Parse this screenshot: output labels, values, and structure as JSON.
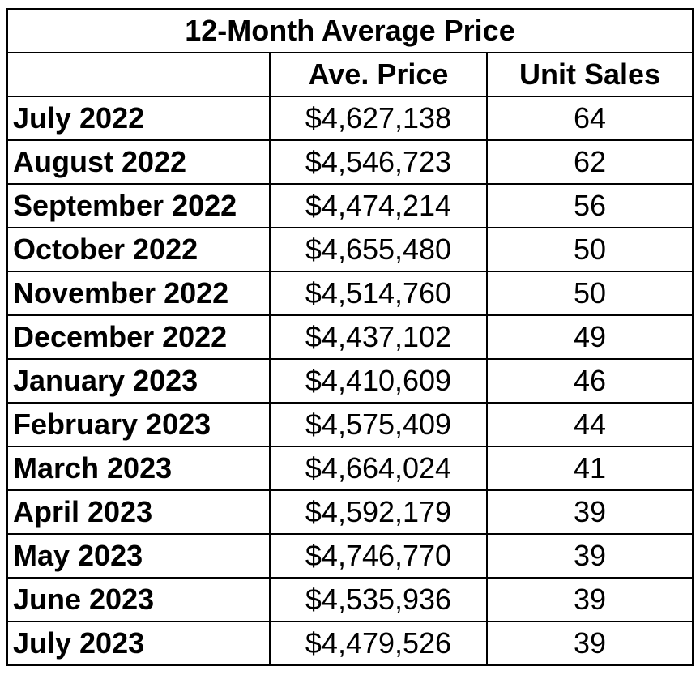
{
  "chart_data": {
    "type": "table",
    "title": "12-Month Average Price",
    "columns": [
      "",
      "Ave. Price",
      "Unit Sales"
    ],
    "rows": [
      {
        "month": "July 2022",
        "price": "$4,627,138",
        "units": "64"
      },
      {
        "month": "August 2022",
        "price": "$4,546,723",
        "units": "62"
      },
      {
        "month": "September 2022",
        "price": "$4,474,214",
        "units": "56"
      },
      {
        "month": "October 2022",
        "price": "$4,655,480",
        "units": "50"
      },
      {
        "month": "November 2022",
        "price": "$4,514,760",
        "units": "50"
      },
      {
        "month": "December 2022",
        "price": "$4,437,102",
        "units": "49"
      },
      {
        "month": "January 2023",
        "price": "$4,410,609",
        "units": "46"
      },
      {
        "month": "February 2023",
        "price": "$4,575,409",
        "units": "44"
      },
      {
        "month": "March 2023",
        "price": "$4,664,024",
        "units": "41"
      },
      {
        "month": "April 2023",
        "price": "$4,592,179",
        "units": "39"
      },
      {
        "month": "May 2023",
        "price": "$4,746,770",
        "units": "39"
      },
      {
        "month": "June 2023",
        "price": "$4,535,936",
        "units": "39"
      },
      {
        "month": "July 2023",
        "price": "$4,479,526",
        "units": "39"
      }
    ]
  }
}
